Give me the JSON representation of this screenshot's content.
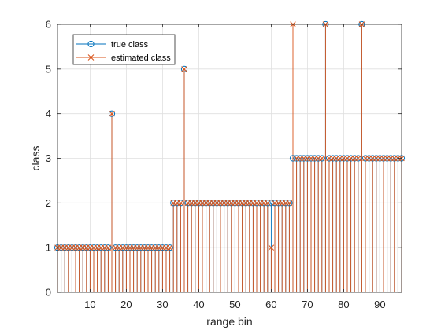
{
  "chart_data": {
    "type": "stem",
    "xlabel": "range bin",
    "ylabel": "class",
    "xlim": [
      1,
      96
    ],
    "ylim": [
      0,
      6
    ],
    "xticks": [
      10,
      20,
      30,
      40,
      50,
      60,
      70,
      80,
      90
    ],
    "yticks": [
      0,
      1,
      2,
      3,
      4,
      5,
      6
    ],
    "grid": true,
    "legend_location": "top-left",
    "x": [
      1,
      2,
      3,
      4,
      5,
      6,
      7,
      8,
      9,
      10,
      11,
      12,
      13,
      14,
      15,
      16,
      17,
      18,
      19,
      20,
      21,
      22,
      23,
      24,
      25,
      26,
      27,
      28,
      29,
      30,
      31,
      32,
      33,
      34,
      35,
      36,
      37,
      38,
      39,
      40,
      41,
      42,
      43,
      44,
      45,
      46,
      47,
      48,
      49,
      50,
      51,
      52,
      53,
      54,
      55,
      56,
      57,
      58,
      59,
      60,
      61,
      62,
      63,
      64,
      65,
      66,
      67,
      68,
      69,
      70,
      71,
      72,
      73,
      74,
      75,
      76,
      77,
      78,
      79,
      80,
      81,
      82,
      83,
      84,
      85,
      86,
      87,
      88,
      89,
      90,
      91,
      92,
      93,
      94,
      95,
      96
    ],
    "series": [
      {
        "name": "true class",
        "color": "#0072BD",
        "marker": "circle",
        "values": [
          1,
          1,
          1,
          1,
          1,
          1,
          1,
          1,
          1,
          1,
          1,
          1,
          1,
          1,
          1,
          4,
          1,
          1,
          1,
          1,
          1,
          1,
          1,
          1,
          1,
          1,
          1,
          1,
          1,
          1,
          1,
          1,
          2,
          2,
          2,
          5,
          2,
          2,
          2,
          2,
          2,
          2,
          2,
          2,
          2,
          2,
          2,
          2,
          2,
          2,
          2,
          2,
          2,
          2,
          2,
          2,
          2,
          2,
          2,
          2,
          2,
          2,
          2,
          2,
          2,
          3,
          3,
          3,
          3,
          3,
          3,
          3,
          3,
          3,
          6,
          3,
          3,
          3,
          3,
          3,
          3,
          3,
          3,
          3,
          6,
          3,
          3,
          3,
          3,
          3,
          3,
          3,
          3,
          3,
          3,
          3
        ]
      },
      {
        "name": "estimated class",
        "color": "#D95319",
        "marker": "x",
        "values": [
          1,
          1,
          1,
          1,
          1,
          1,
          1,
          1,
          1,
          1,
          1,
          1,
          1,
          1,
          1,
          4,
          1,
          1,
          1,
          1,
          1,
          1,
          1,
          1,
          1,
          1,
          1,
          1,
          1,
          1,
          1,
          1,
          2,
          2,
          2,
          5,
          2,
          2,
          2,
          2,
          2,
          2,
          2,
          2,
          2,
          2,
          2,
          2,
          2,
          2,
          2,
          2,
          2,
          2,
          2,
          2,
          2,
          2,
          2,
          1,
          2,
          2,
          2,
          2,
          2,
          6,
          3,
          3,
          3,
          3,
          3,
          3,
          3,
          3,
          6,
          3,
          3,
          3,
          3,
          3,
          3,
          3,
          3,
          3,
          6,
          3,
          3,
          3,
          3,
          3,
          3,
          3,
          3,
          3,
          3,
          3
        ]
      }
    ]
  }
}
